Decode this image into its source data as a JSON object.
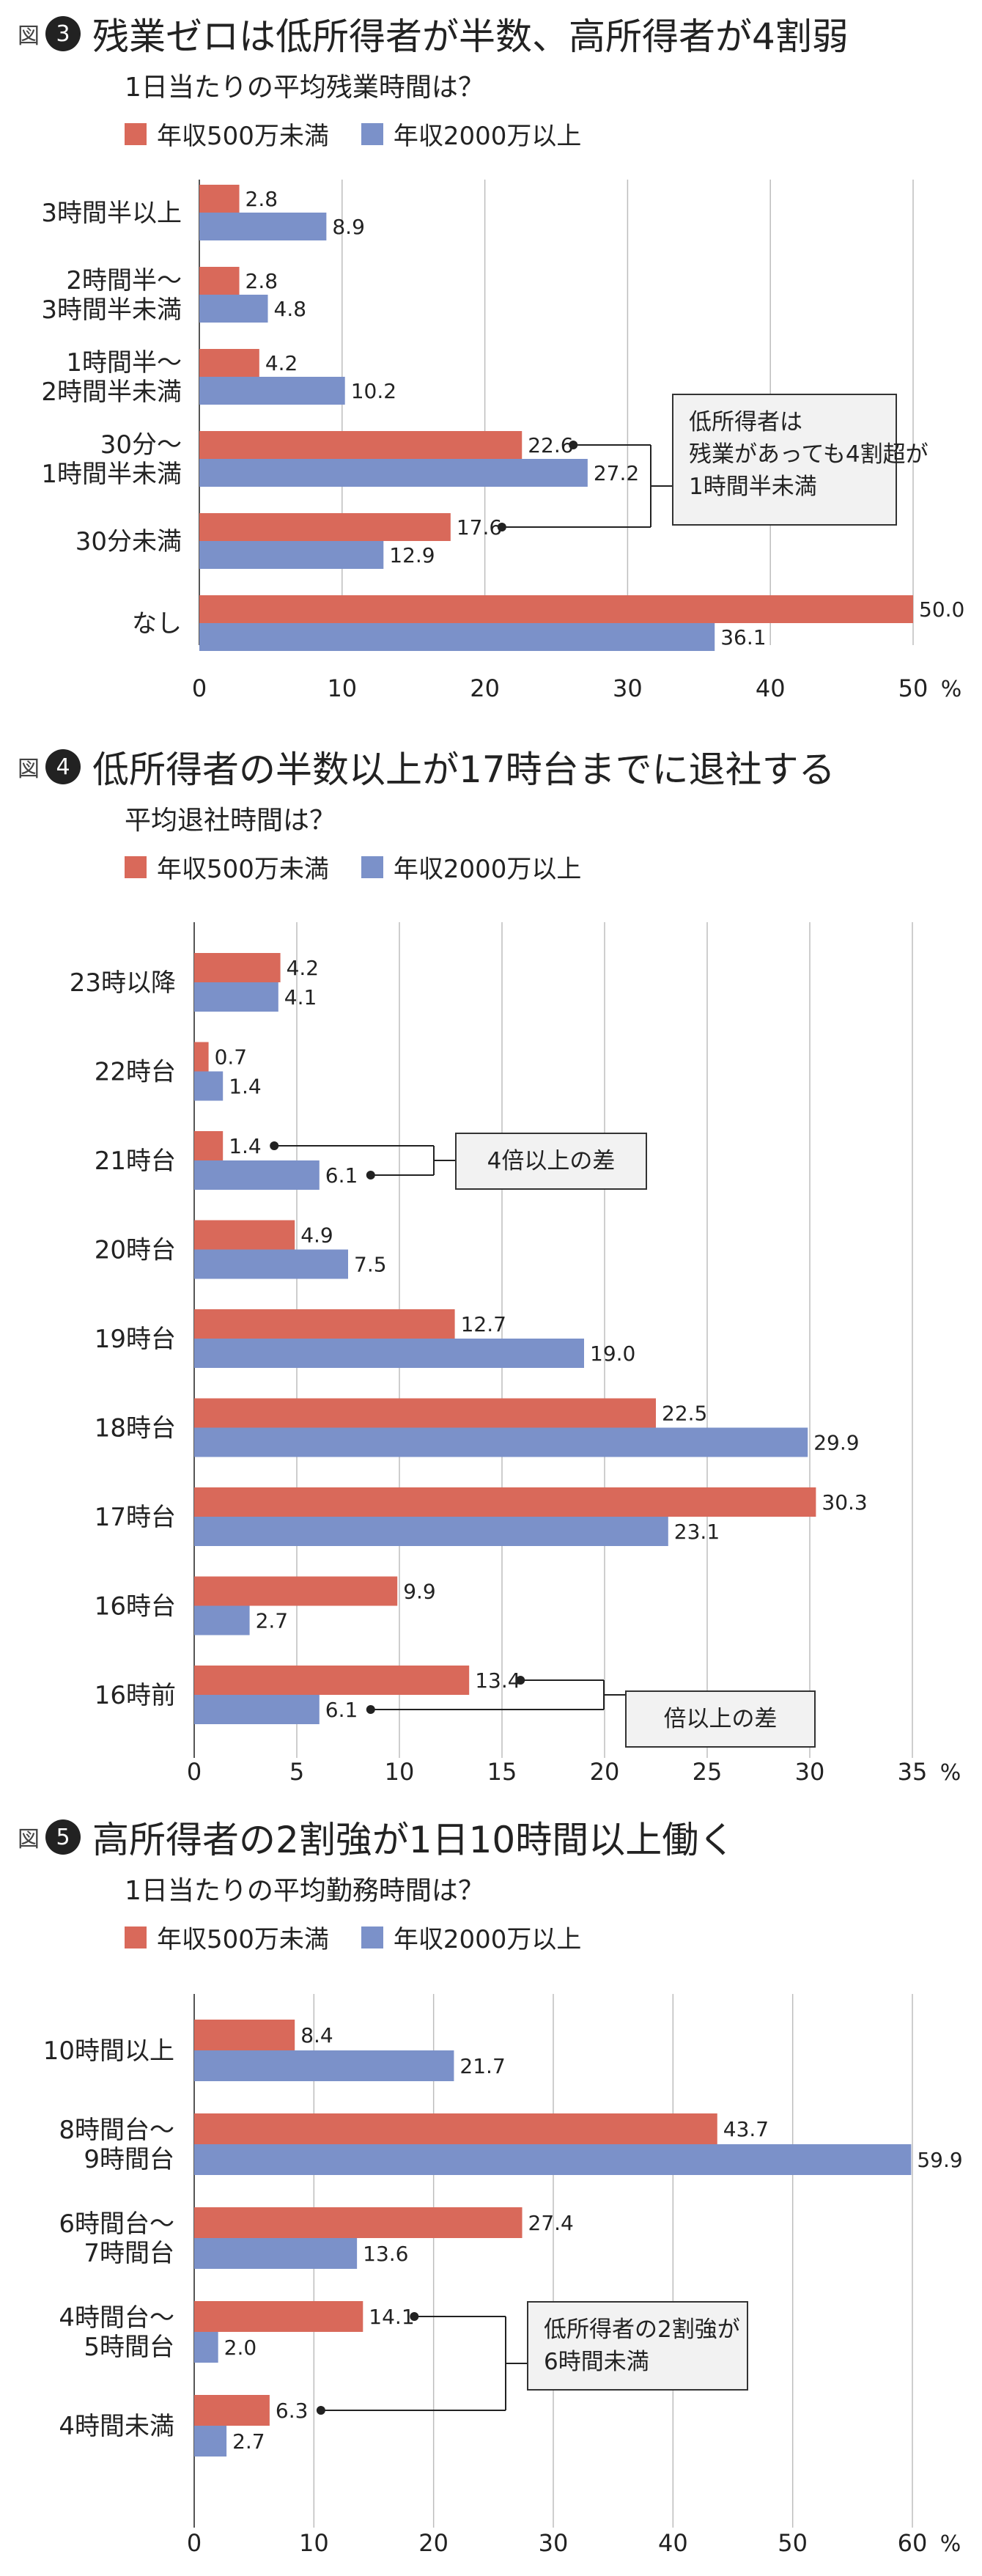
{
  "colors": {
    "low": "#d9695a",
    "high": "#7b91c9",
    "grid": "#bdbdbd",
    "callout_fill": "#f2f2f2",
    "callout_border": "#333333"
  },
  "figures": [
    {
      "zu": "図",
      "num": "3",
      "title": "残業ゼロは低所得者が半数、高所得者が4割弱",
      "subtitle": "1日当たりの平均残業時間は？",
      "legend": {
        "low": "年収500万未満",
        "high": "年収2000万以上"
      },
      "unit": "%",
      "callouts": [
        {
          "lines": [
            "低所得者は",
            "残業があっても4割超が",
            "1時間半未満"
          ]
        }
      ]
    },
    {
      "zu": "図",
      "num": "4",
      "title": "低所得者の半数以上が17時台までに退社する",
      "subtitle": "平均退社時間は？",
      "legend": {
        "low": "年収500万未満",
        "high": "年収2000万以上"
      },
      "unit": "%",
      "callouts": [
        {
          "lines": [
            "4倍以上の差"
          ]
        },
        {
          "lines": [
            "倍以上の差"
          ]
        }
      ]
    },
    {
      "zu": "図",
      "num": "5",
      "title": "高所得者の2割強が1日10時間以上働く",
      "subtitle": "1日当たりの平均勤務時間は？",
      "legend": {
        "low": "年収500万未満",
        "high": "年収2000万以上"
      },
      "unit": "%",
      "callouts": [
        {
          "lines": [
            "低所得者の2割強が",
            "6時間未満"
          ]
        }
      ]
    }
  ],
  "chart_data": [
    {
      "type": "bar",
      "orientation": "horizontal",
      "title": "1日当たりの平均残業時間は？",
      "categories": [
        [
          "3時間半以上"
        ],
        [
          "2時間半〜",
          "3時間半未満"
        ],
        [
          "1時間半〜",
          "2時間半未満"
        ],
        [
          "30分〜",
          "1時間半未満"
        ],
        [
          "30分未満"
        ],
        [
          "なし"
        ]
      ],
      "series": [
        {
          "name": "年収500万未満",
          "values": [
            2.8,
            2.8,
            4.2,
            22.6,
            17.6,
            50.0
          ]
        },
        {
          "name": "年収2000万以上",
          "values": [
            8.9,
            4.8,
            10.2,
            27.2,
            12.9,
            36.1
          ]
        }
      ],
      "xlim": [
        0,
        50
      ],
      "xticks": [
        "0",
        "10",
        "20",
        "30",
        "40",
        "50"
      ],
      "grid": true,
      "legend": "top-left"
    },
    {
      "type": "bar",
      "orientation": "horizontal",
      "title": "平均退社時間は？",
      "categories": [
        [
          "23時以降"
        ],
        [
          "22時台"
        ],
        [
          "21時台"
        ],
        [
          "20時台"
        ],
        [
          "19時台"
        ],
        [
          "18時台"
        ],
        [
          "17時台"
        ],
        [
          "16時台"
        ],
        [
          "16時前"
        ]
      ],
      "series": [
        {
          "name": "年収500万未満",
          "values": [
            4.2,
            0.7,
            1.4,
            4.9,
            12.7,
            22.5,
            30.3,
            9.9,
            13.4
          ]
        },
        {
          "name": "年収2000万以上",
          "values": [
            4.1,
            1.4,
            6.1,
            7.5,
            19.0,
            29.9,
            23.1,
            2.7,
            6.1
          ]
        }
      ],
      "xlim": [
        0,
        35
      ],
      "xticks": [
        "0",
        "5",
        "10",
        "15",
        "20",
        "25",
        "30",
        "35"
      ],
      "grid": true,
      "legend": "top-left"
    },
    {
      "type": "bar",
      "orientation": "horizontal",
      "title": "1日当たりの平均勤務時間は？",
      "categories": [
        [
          "10時間以上"
        ],
        [
          "8時間台〜",
          "9時間台"
        ],
        [
          "6時間台〜",
          "7時間台"
        ],
        [
          "4時間台〜",
          "5時間台"
        ],
        [
          "4時間未満"
        ]
      ],
      "series": [
        {
          "name": "年収500万未満",
          "values": [
            8.4,
            43.7,
            27.4,
            14.1,
            6.3
          ]
        },
        {
          "name": "年収2000万以上",
          "values": [
            21.7,
            59.9,
            13.6,
            2.0,
            2.7
          ]
        }
      ],
      "xlim": [
        0,
        60
      ],
      "xticks": [
        "0",
        "10",
        "20",
        "30",
        "40",
        "50",
        "60"
      ],
      "grid": true,
      "legend": "top-left"
    }
  ]
}
